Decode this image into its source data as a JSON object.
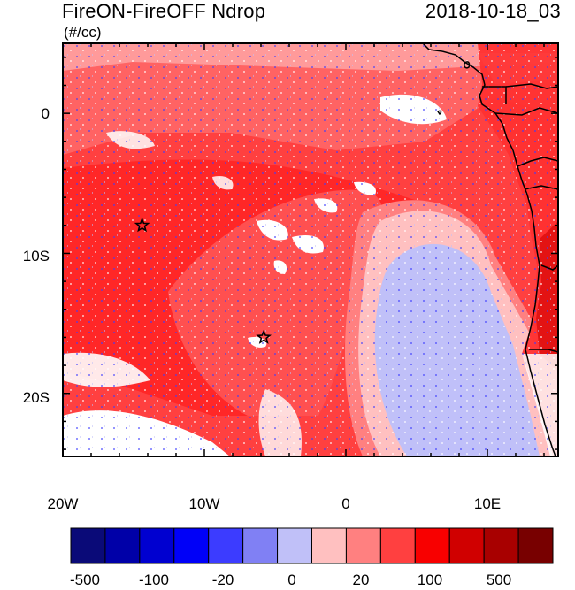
{
  "header": {
    "title": "FireON-FireOFF Ndrop",
    "units": "(#/cc)",
    "datetime": "2018-10-18_03"
  },
  "axes": {
    "lon_labels": [
      "20W",
      "10W",
      "0",
      "10E"
    ],
    "lat_labels": [
      "0",
      "10S",
      "20S"
    ],
    "lon_range": [
      -20,
      15
    ],
    "lat_range": [
      -24.5,
      5
    ]
  },
  "markers": [
    {
      "name": "star-marker-north",
      "lon": -14.4,
      "lat": -8.0
    },
    {
      "name": "star-marker-south",
      "lon": -5.8,
      "lat": -16.0
    }
  ],
  "colorbar": {
    "colors": [
      "#0a0a78",
      "#0000a8",
      "#0000d0",
      "#0000f8",
      "#3c3cff",
      "#8080f4",
      "#c0c0f8",
      "#ffc0c0",
      "#ff8080",
      "#ff4040",
      "#f80000",
      "#d00000",
      "#a80000",
      "#780000"
    ],
    "labels": [
      "-500",
      "-100",
      "-20",
      "0",
      "20",
      "100",
      "500"
    ]
  }
}
